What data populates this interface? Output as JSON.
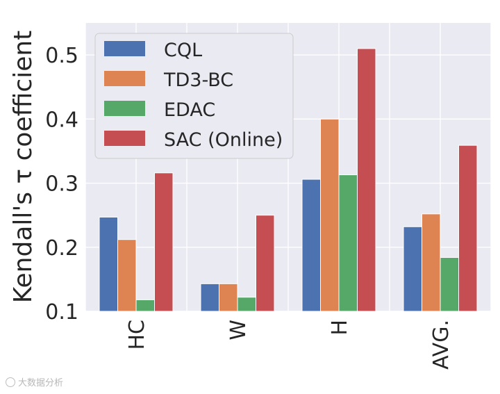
{
  "chart_data": {
    "type": "bar",
    "title": "",
    "xlabel": "",
    "ylabel": "Kendall's τ coefficient",
    "ylim": [
      0.1,
      0.55
    ],
    "yticks": [
      0.1,
      0.2,
      0.3,
      0.4,
      0.5
    ],
    "ytick_labels": [
      "0.1",
      "0.2",
      "0.3",
      "0.4",
      "0.5"
    ],
    "categories": [
      "HC",
      "W",
      "H",
      "AVG."
    ],
    "grid": true,
    "legend_position": "top-left",
    "series": [
      {
        "name": "CQL",
        "color": "#4C72B0",
        "values": [
          0.247,
          0.143,
          0.306,
          0.232
        ]
      },
      {
        "name": "TD3-BC",
        "color": "#DD8452",
        "values": [
          0.212,
          0.143,
          0.4,
          0.252
        ]
      },
      {
        "name": "EDAC",
        "color": "#55A868",
        "values": [
          0.118,
          0.122,
          0.313,
          0.184
        ]
      },
      {
        "name": "SAC (Online)",
        "color": "#C44E52",
        "values": [
          0.316,
          0.25,
          0.51,
          0.359
        ]
      }
    ]
  },
  "watermark": {
    "text": "大数据分析",
    "icon": "camera-icon"
  }
}
